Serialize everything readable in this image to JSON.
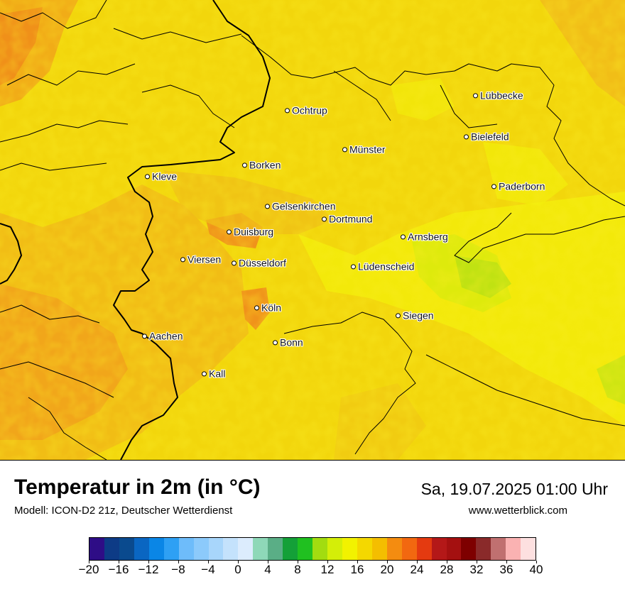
{
  "map": {
    "cities": [
      {
        "name": "Ochtrup"
      },
      {
        "name": "Lübbecke"
      },
      {
        "name": "Bielefeld"
      },
      {
        "name": "Münster"
      },
      {
        "name": "Borken"
      },
      {
        "name": "Kleve"
      },
      {
        "name": "Paderborn"
      },
      {
        "name": "Gelsenkirchen"
      },
      {
        "name": "Dortmund"
      },
      {
        "name": "Duisburg"
      },
      {
        "name": "Arnsberg"
      },
      {
        "name": "Viersen"
      },
      {
        "name": "Düsseldorf"
      },
      {
        "name": "Lüdenscheid"
      },
      {
        "name": "Köln"
      },
      {
        "name": "Siegen"
      },
      {
        "name": "Aachen"
      },
      {
        "name": "Bonn"
      },
      {
        "name": "Kall"
      }
    ]
  },
  "footer": {
    "title": "Temperatur in 2m (in °C)",
    "subtitle": "Modell: ICON-D2 21z, Deutscher Wetterdienst",
    "datetime": "Sa, 19.07.2025 01:00 Uhr",
    "website": "www.wetterblick.com"
  },
  "legend": {
    "colors": [
      "#2e0d86",
      "#0d3b86",
      "#0a4a8e",
      "#0a66c2",
      "#0a86e6",
      "#2ea0f4",
      "#6ebcfa",
      "#8ccafb",
      "#a8d6fb",
      "#c4e2fc",
      "#dcecfd",
      "#8ed8b8",
      "#5aae86",
      "#14a038",
      "#20c020",
      "#a2dc10",
      "#d4ee08",
      "#f2f200",
      "#f4d800",
      "#f4be00",
      "#f48c10",
      "#f26810",
      "#e43a10",
      "#b41818",
      "#a41010",
      "#7e0000",
      "#8a2a2a",
      "#c07070",
      "#fab2b2",
      "#fde0e0"
    ],
    "ticks": [
      "−20",
      "−16",
      "−12",
      "−8",
      "−4",
      "0",
      "4",
      "8",
      "12",
      "16",
      "20",
      "24",
      "28",
      "32",
      "36",
      "40"
    ],
    "min": -20,
    "max": 40
  }
}
